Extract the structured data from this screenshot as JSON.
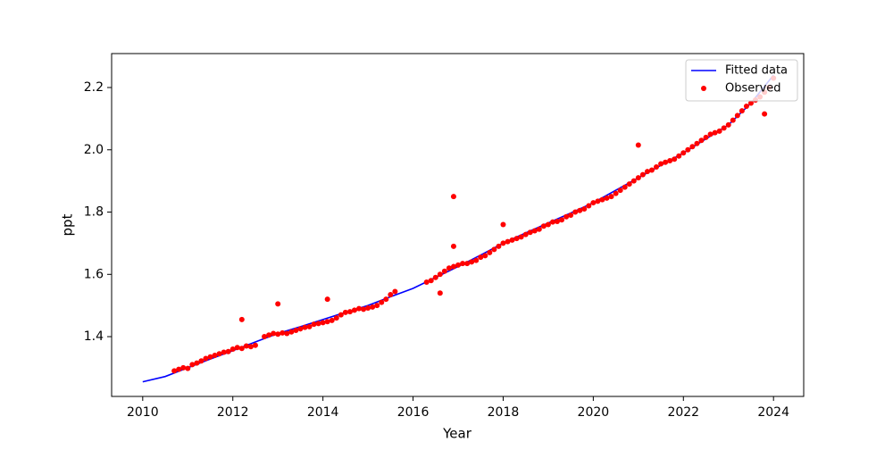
{
  "chart_data": {
    "type": "scatter",
    "xlabel": "Year",
    "ylabel": "ppt",
    "xlim": [
      2009.31,
      2024.67
    ],
    "ylim": [
      1.208,
      2.309
    ],
    "xticks": [
      2010,
      2012,
      2014,
      2016,
      2018,
      2020,
      2022,
      2024
    ],
    "yticks": [
      1.4,
      1.6,
      1.8,
      {
        "value": 2,
        "label": "2.0"
      },
      2.2
    ],
    "grid": false,
    "legend": "upper right",
    "series": [
      {
        "name": "Fitted data",
        "type": "line",
        "color": "#0000ff",
        "x": [
          2010,
          2010.5,
          2011,
          2011.5,
          2012,
          2012.5,
          2013,
          2013.5,
          2014,
          2014.5,
          2015,
          2015.5,
          2016,
          2016.5,
          2017,
          2017.5,
          2018,
          2018.5,
          2019,
          2019.5,
          2020,
          2020.5,
          2021,
          2021.5,
          2022,
          2022.5,
          2023,
          2023.5,
          2024
        ],
        "values": [
          1.255,
          1.272,
          1.3,
          1.328,
          1.355,
          1.383,
          1.41,
          1.432,
          1.455,
          1.478,
          1.5,
          1.528,
          1.555,
          1.59,
          1.625,
          1.662,
          1.7,
          1.733,
          1.765,
          1.797,
          1.83,
          1.87,
          1.91,
          1.95,
          1.99,
          2.035,
          2.08,
          2.15,
          2.24
        ]
      },
      {
        "name": "Observed",
        "type": "scatter",
        "color": "#ff0000",
        "x": [
          2010.7,
          2010.8,
          2010.9,
          2011.0,
          2011.1,
          2011.2,
          2011.3,
          2011.4,
          2011.5,
          2011.6,
          2011.7,
          2011.8,
          2011.9,
          2012.0,
          2012.1,
          2012.2,
          2012.3,
          2012.4,
          2012.5,
          2012.7,
          2012.8,
          2012.9,
          2013.0,
          2013.1,
          2013.2,
          2013.3,
          2013.4,
          2013.5,
          2013.6,
          2013.7,
          2013.8,
          2013.9,
          2014.0,
          2014.1,
          2014.2,
          2014.3,
          2014.4,
          2014.5,
          2014.6,
          2014.7,
          2014.8,
          2014.9,
          2015.0,
          2015.1,
          2015.2,
          2015.3,
          2015.4,
          2015.5,
          2015.6,
          2016.3,
          2016.4,
          2016.5,
          2016.6,
          2016.7,
          2016.8,
          2016.9,
          2017.0,
          2017.1,
          2017.2,
          2017.3,
          2017.4,
          2017.5,
          2017.6,
          2017.7,
          2017.8,
          2017.9,
          2018.0,
          2018.1,
          2018.2,
          2018.3,
          2018.4,
          2018.5,
          2018.6,
          2018.7,
          2018.8,
          2018.9,
          2019.0,
          2019.1,
          2019.2,
          2019.3,
          2019.4,
          2019.5,
          2019.6,
          2019.7,
          2019.8,
          2019.9,
          2020.0,
          2020.1,
          2020.2,
          2020.3,
          2020.4,
          2020.5,
          2020.6,
          2020.7,
          2020.8,
          2020.9,
          2021.0,
          2021.1,
          2021.2,
          2021.3,
          2021.4,
          2021.5,
          2021.6,
          2021.7,
          2021.8,
          2021.9,
          2022.0,
          2022.1,
          2022.2,
          2022.3,
          2022.4,
          2022.5,
          2022.6,
          2022.7,
          2022.8,
          2022.9,
          2023.0,
          2023.1,
          2023.2,
          2023.3,
          2023.4,
          2023.5,
          2023.6,
          2023.7,
          2023.8,
          2023.9,
          2024.0,
          2012.2,
          2013.0,
          2014.1,
          2016.6,
          2016.9,
          2016.9,
          2018.0,
          2021.0,
          2023.8
        ],
        "values": [
          1.29,
          1.295,
          1.3,
          1.298,
          1.31,
          1.315,
          1.322,
          1.33,
          1.335,
          1.34,
          1.345,
          1.35,
          1.352,
          1.36,
          1.365,
          1.362,
          1.37,
          1.368,
          1.372,
          1.4,
          1.405,
          1.41,
          1.408,
          1.412,
          1.41,
          1.415,
          1.42,
          1.425,
          1.43,
          1.432,
          1.44,
          1.442,
          1.445,
          1.448,
          1.452,
          1.46,
          1.47,
          1.478,
          1.48,
          1.485,
          1.49,
          1.488,
          1.492,
          1.495,
          1.5,
          1.51,
          1.52,
          1.535,
          1.545,
          1.575,
          1.58,
          1.59,
          1.6,
          1.61,
          1.62,
          1.625,
          1.63,
          1.635,
          1.635,
          1.64,
          1.645,
          1.655,
          1.66,
          1.67,
          1.68,
          1.69,
          1.7,
          1.705,
          1.71,
          1.715,
          1.72,
          1.728,
          1.735,
          1.74,
          1.745,
          1.755,
          1.76,
          1.768,
          1.77,
          1.775,
          1.785,
          1.79,
          1.8,
          1.805,
          1.81,
          1.82,
          1.83,
          1.835,
          1.84,
          1.845,
          1.85,
          1.86,
          1.87,
          1.88,
          1.89,
          1.9,
          1.91,
          1.92,
          1.93,
          1.935,
          1.945,
          1.955,
          1.96,
          1.965,
          1.97,
          1.98,
          1.99,
          2.0,
          2.01,
          2.02,
          2.03,
          2.04,
          2.05,
          2.055,
          2.06,
          2.07,
          2.08,
          2.095,
          2.11,
          2.125,
          2.14,
          2.15,
          2.16,
          2.17,
          2.185,
          2.2,
          2.23,
          1.455,
          1.505,
          1.52,
          1.54,
          1.85,
          1.69,
          1.76,
          2.015,
          2.115
        ]
      }
    ]
  }
}
